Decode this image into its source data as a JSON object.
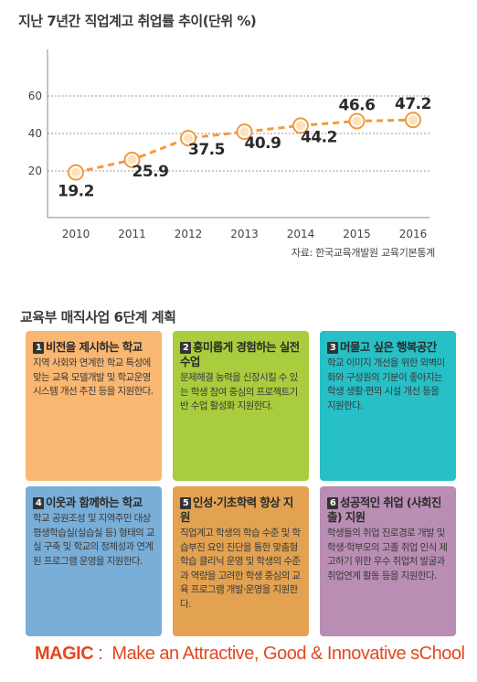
{
  "chart_title": "지난 7년간 직업계고 취업률 추이(단위 %)",
  "chart_data": {
    "type": "line",
    "title": "지난 7년간 직업계고 취업률 추이(단위 %)",
    "x": [
      "2010",
      "2011",
      "2012",
      "2013",
      "2014",
      "2015",
      "2016"
    ],
    "values": [
      19.2,
      25.9,
      37.5,
      40.9,
      44.2,
      46.6,
      47.2
    ],
    "labels": [
      "19.2",
      "25.9",
      "37.5",
      "40.9",
      "44.2",
      "46.6",
      "47.2"
    ],
    "yticks": [
      "20",
      "40",
      "60"
    ],
    "ylim": [
      10,
      65
    ],
    "grid": true,
    "colors": {
      "line": "#f39a3c",
      "marker_fill": "#fbe1bd",
      "marker_stroke": "#f39a3c",
      "grid": "#999999"
    }
  },
  "source": "자료: 한국교육개발원 교육기본통계",
  "plan_title": "교육부 매직사업 6단계 계획",
  "cards": [
    {
      "num": "1",
      "title": "비전을 제시하는 학교",
      "body": "지역 사회와 연계한 학교 특성에 맞는 교육 모델개발 및 학교운영 시스템 개선 추진 등을 지원한다.",
      "color": "#f9b772"
    },
    {
      "num": "2",
      "title": "흥미롭게 경험하는 실전수업",
      "body": "문제해결 능력을 신장시킬 수 있는 학생 참여 중심의 프로젝트기반 수업 활성화 지원한다.",
      "color": "#a9cd3c"
    },
    {
      "num": "3",
      "title": "머물고 싶은 행복공간",
      "body": "학교 이미지 개선을 위한 외벽미화와 구성원의 기분이 좋아지는 학생 생활·편의 시설 개선 등을 지원한다.",
      "color": "#26c0c6"
    },
    {
      "num": "4",
      "title": "이웃과 함께하는 학교",
      "body": "학교 공원조성 및 지역주민 대상 평생학습실(실습실 등) 형태의 교실 구축 및 학교의 정체성과 연계된 프로그램 운영을 지원한다.",
      "color": "#79aed8"
    },
    {
      "num": "5",
      "title": "인성·기초학력 향상 지원",
      "body": "직업계고 학생의 학습 수준 및 학습부진 요인 진단을 통한 맞춤형 학습 클리닉 운영 및 학생의 수준과 역량을 고려한 학생 중심의 교육 프로그램 개발·운영을 지원한다.",
      "color": "#e2a251"
    },
    {
      "num": "6",
      "title": "성공적인 취업 (사회진출) 지원",
      "body": "학생들의 취업 진로경로 개발 및 학생·학부모의 고졸 취업 인식 제고하기 위한 우수 취업처 발굴과 취업연계 활동 등을 지원한다.",
      "color": "#b98db4"
    }
  ],
  "magic": {
    "key": "MAGIC",
    "sep": " :  ",
    "text": "Make an Attractive, Good & Innovative sChool"
  }
}
